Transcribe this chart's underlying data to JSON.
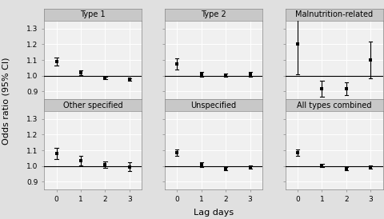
{
  "panels": [
    {
      "title": "Type 1",
      "x": [
        0,
        1,
        2,
        3
      ],
      "y": [
        1.09,
        1.02,
        0.985,
        0.975
      ],
      "ci_low": [
        1.065,
        1.005,
        0.975,
        0.965
      ],
      "ci_high": [
        1.115,
        1.035,
        0.995,
        0.985
      ]
    },
    {
      "title": "Type 2",
      "x": [
        0,
        1,
        2,
        3
      ],
      "y": [
        1.075,
        1.01,
        1.005,
        1.01
      ],
      "ci_low": [
        1.04,
        0.995,
        0.995,
        0.995
      ],
      "ci_high": [
        1.11,
        1.025,
        1.015,
        1.025
      ]
    },
    {
      "title": "Malnutrition-related",
      "x": [
        0,
        1,
        2,
        3
      ],
      "y": [
        1.2,
        0.915,
        0.915,
        1.1
      ],
      "ci_low": [
        1.01,
        0.865,
        0.875,
        0.985
      ],
      "ci_high": [
        1.4,
        0.965,
        0.955,
        1.215
      ]
    },
    {
      "title": "Other specified",
      "x": [
        0,
        1,
        2,
        3
      ],
      "y": [
        1.08,
        1.035,
        1.01,
        0.995
      ],
      "ci_low": [
        1.045,
        1.005,
        0.99,
        0.965
      ],
      "ci_high": [
        1.115,
        1.065,
        1.03,
        1.025
      ]
    },
    {
      "title": "Unspecified",
      "x": [
        0,
        1,
        2,
        3
      ],
      "y": [
        1.085,
        1.01,
        0.985,
        0.995
      ],
      "ci_low": [
        1.065,
        0.995,
        0.975,
        0.985
      ],
      "ci_high": [
        1.105,
        1.025,
        0.995,
        1.005
      ]
    },
    {
      "title": "All types combined",
      "x": [
        0,
        1,
        2,
        3
      ],
      "y": [
        1.085,
        1.005,
        0.985,
        0.995
      ],
      "ci_low": [
        1.065,
        0.995,
        0.975,
        0.985
      ],
      "ci_high": [
        1.105,
        1.015,
        0.995,
        1.005
      ]
    }
  ],
  "ylim": [
    0.85,
    1.35
  ],
  "yticks": [
    0.9,
    1.0,
    1.1,
    1.2,
    1.3
  ],
  "xticks": [
    0,
    1,
    2,
    3
  ],
  "xlabel": "Lag days",
  "ylabel": "Odds ratio (95% CI)",
  "hline_y": 1.0,
  "header_color": "#c8c8c8",
  "panel_bg": "#f0f0f0",
  "grid_color": "#ffffff",
  "outer_bg": "#e0e0e0",
  "marker_color": "black",
  "ci_color": "black",
  "title_fontsize": 7.0,
  "label_fontsize": 8,
  "tick_fontsize": 6.5
}
